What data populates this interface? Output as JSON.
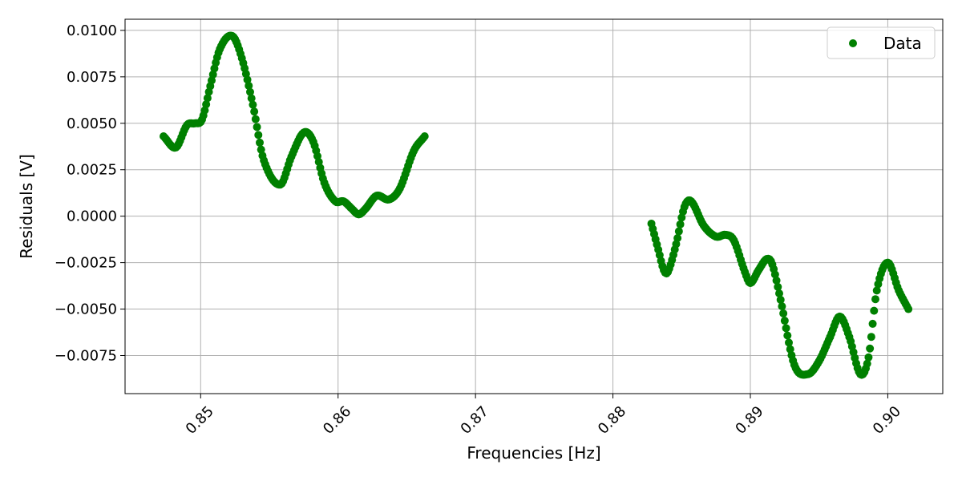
{
  "chart_data": {
    "type": "scatter",
    "title": "",
    "xlabel": "Frequencies [Hz]",
    "ylabel": "Residuals [V]",
    "xlim": [
      0.8445,
      0.904
    ],
    "ylim": [
      -0.00955,
      0.0106
    ],
    "grid": true,
    "legend": {
      "position": "top-right",
      "entries": [
        "Data"
      ]
    },
    "colors": {
      "series": "#008000",
      "grid": "#b0b0b0",
      "axis": "#000000"
    },
    "x_ticks": [
      0.85,
      0.86,
      0.87,
      0.88,
      0.89,
      0.9
    ],
    "x_tick_labels": [
      "0.85",
      "0.86",
      "0.87",
      "0.88",
      "0.89",
      "0.90"
    ],
    "y_ticks": [
      -0.0075,
      -0.005,
      -0.0025,
      0.0,
      0.0025,
      0.005,
      0.0075,
      0.01
    ],
    "y_tick_labels": [
      "−0.0075",
      "−0.0050",
      "−0.0025",
      "0.0000",
      "0.0025",
      "0.0050",
      "0.0075",
      "0.0100"
    ],
    "series": [
      {
        "name": "Data",
        "segments": [
          {
            "x_start": 0.8473,
            "x_end": 0.8663,
            "keypoints": [
              [
                0.8473,
                0.0043
              ],
              [
                0.8482,
                0.0037
              ],
              [
                0.849,
                0.0049
              ],
              [
                0.8496,
                0.005
              ],
              [
                0.8501,
                0.0052
              ],
              [
                0.8507,
                0.007
              ],
              [
                0.8514,
                0.009
              ],
              [
                0.8523,
                0.0097
              ],
              [
                0.853,
                0.0085
              ],
              [
                0.8538,
                0.006
              ],
              [
                0.8546,
                0.003
              ],
              [
                0.8558,
                0.0017
              ],
              [
                0.8566,
                0.0032
              ],
              [
                0.8575,
                0.0045
              ],
              [
                0.8582,
                0.004
              ],
              [
                0.859,
                0.0018
              ],
              [
                0.8598,
                0.0008
              ],
              [
                0.8604,
                0.0008
              ],
              [
                0.861,
                0.0004
              ],
              [
                0.8615,
                0.0001
              ],
              [
                0.862,
                0.0004
              ],
              [
                0.8628,
                0.0011
              ],
              [
                0.8637,
                0.0009
              ],
              [
                0.8645,
                0.0015
              ],
              [
                0.8655,
                0.0035
              ],
              [
                0.8663,
                0.0043
              ]
            ]
          },
          {
            "x_start": 0.8828,
            "x_end": 0.9015,
            "keypoints": [
              [
                0.8828,
                -0.0004
              ],
              [
                0.8833,
                -0.0018
              ],
              [
                0.8837,
                -0.0029
              ],
              [
                0.884,
                -0.003
              ],
              [
                0.8846,
                -0.0015
              ],
              [
                0.8852,
                0.0005
              ],
              [
                0.8857,
                0.0008
              ],
              [
                0.8866,
                -0.0005
              ],
              [
                0.8875,
                -0.0011
              ],
              [
                0.8882,
                -0.001
              ],
              [
                0.8888,
                -0.0013
              ],
              [
                0.8896,
                -0.003
              ],
              [
                0.89,
                -0.0036
              ],
              [
                0.8906,
                -0.0029
              ],
              [
                0.8912,
                -0.0023
              ],
              [
                0.8916,
                -0.0026
              ],
              [
                0.8922,
                -0.0045
              ],
              [
                0.8932,
                -0.008
              ],
              [
                0.8942,
                -0.0085
              ],
              [
                0.895,
                -0.0078
              ],
              [
                0.8958,
                -0.0065
              ],
              [
                0.8965,
                -0.0054
              ],
              [
                0.8972,
                -0.0065
              ],
              [
                0.898,
                -0.0085
              ],
              [
                0.8986,
                -0.0076
              ],
              [
                0.8992,
                -0.004
              ],
              [
                0.9,
                -0.0025
              ],
              [
                0.9008,
                -0.004
              ],
              [
                0.9015,
                -0.005
              ]
            ]
          }
        ]
      }
    ]
  }
}
